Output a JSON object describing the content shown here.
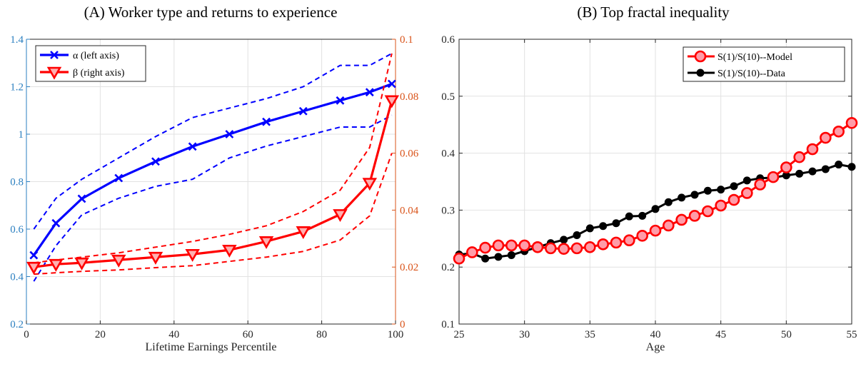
{
  "chart_data": [
    {
      "type": "line",
      "title": "(A) Worker type and returns to experience",
      "xlabel": "Lifetime Earnings Percentile",
      "ylabel": "",
      "xlim": [
        0,
        100
      ],
      "xticks": [
        0,
        20,
        40,
        60,
        80,
        100
      ],
      "ylim_left": [
        0.2,
        1.4
      ],
      "yticks_left": [
        0.2,
        0.4,
        0.6,
        0.8,
        1,
        1.2,
        1.4
      ],
      "ylim_right": [
        0,
        0.1
      ],
      "yticks_right": [
        0,
        0.02,
        0.04,
        0.06,
        0.08,
        0.1
      ],
      "grid": true,
      "legend_position": "top-left",
      "colors": {
        "left_axis": "#2b7fc0",
        "right_axis": "#d95319",
        "alpha": "#0000ff",
        "beta": "#ff0000"
      },
      "x": [
        2,
        8,
        15,
        25,
        35,
        45,
        55,
        65,
        75,
        85,
        93,
        99
      ],
      "series": [
        {
          "name": "α (left axis)",
          "axis": "left",
          "marker": "x",
          "color": "#0000ff",
          "values": [
            0.49,
            0.625,
            0.728,
            0.815,
            0.885,
            0.948,
            1.0,
            1.052,
            1.097,
            1.142,
            1.177,
            1.212
          ],
          "upper": [
            0.6,
            0.73,
            0.81,
            0.9,
            0.99,
            1.07,
            1.11,
            1.15,
            1.2,
            1.29,
            1.29,
            1.34
          ],
          "lower": [
            0.38,
            0.53,
            0.66,
            0.73,
            0.78,
            0.81,
            0.9,
            0.95,
            0.99,
            1.03,
            1.03,
            1.08
          ]
        },
        {
          "name": "β (right axis)",
          "axis": "right",
          "marker": "triangle-down",
          "color": "#ff0000",
          "values": [
            0.02,
            0.021,
            0.0215,
            0.0225,
            0.0235,
            0.0245,
            0.026,
            0.029,
            0.0325,
            0.0385,
            0.0495,
            0.0785
          ],
          "upper": [
            0.0215,
            0.0225,
            0.0235,
            0.025,
            0.027,
            0.029,
            0.0315,
            0.0345,
            0.0395,
            0.047,
            0.062,
            0.095
          ],
          "lower": [
            0.0175,
            0.018,
            0.0185,
            0.019,
            0.0198,
            0.0205,
            0.022,
            0.0235,
            0.0255,
            0.0295,
            0.038,
            0.06
          ]
        }
      ]
    },
    {
      "type": "line",
      "title": "(B) Top fractal inequality",
      "xlabel": "Age",
      "ylabel": "",
      "xlim": [
        25,
        55
      ],
      "xticks": [
        25,
        30,
        35,
        40,
        45,
        50,
        55
      ],
      "ylim": [
        0.1,
        0.6
      ],
      "yticks": [
        0.1,
        0.2,
        0.3,
        0.4,
        0.5,
        0.6
      ],
      "grid": true,
      "legend_position": "top-right",
      "x": [
        25,
        26,
        27,
        28,
        29,
        30,
        31,
        32,
        33,
        34,
        35,
        36,
        37,
        38,
        39,
        40,
        41,
        42,
        43,
        44,
        45,
        46,
        47,
        48,
        49,
        50,
        51,
        52,
        53,
        54,
        55
      ],
      "series": [
        {
          "name": "S(1)/S(10)--Model",
          "marker": "circle-open",
          "color": "#ff0000",
          "values": [
            0.215,
            0.226,
            0.234,
            0.238,
            0.238,
            0.238,
            0.235,
            0.233,
            0.232,
            0.233,
            0.235,
            0.24,
            0.243,
            0.247,
            0.255,
            0.264,
            0.273,
            0.283,
            0.29,
            0.298,
            0.308,
            0.318,
            0.33,
            0.345,
            0.358,
            0.375,
            0.393,
            0.407,
            0.427,
            0.438,
            0.453
          ]
        },
        {
          "name": "S(1)/S(10)--Data",
          "marker": "circle-filled",
          "color": "#000000",
          "values": [
            0.222,
            0.224,
            0.215,
            0.218,
            0.221,
            0.228,
            0.235,
            0.242,
            0.248,
            0.256,
            0.268,
            0.272,
            0.277,
            0.289,
            0.29,
            0.302,
            0.314,
            0.322,
            0.327,
            0.334,
            0.336,
            0.342,
            0.352,
            0.356,
            0.357,
            0.361,
            0.364,
            0.368,
            0.372,
            0.38,
            0.376
          ]
        }
      ]
    }
  ]
}
